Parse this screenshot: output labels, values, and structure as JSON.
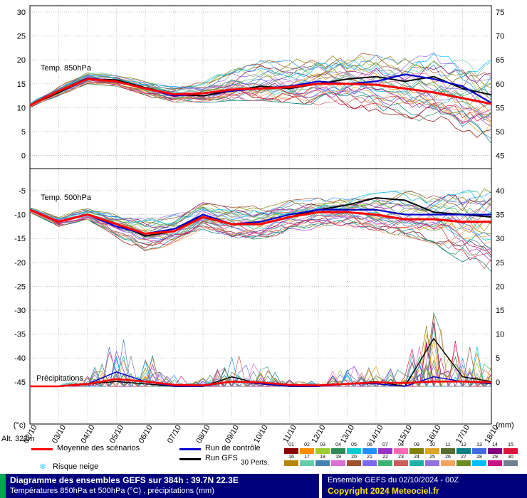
{
  "chart_data": {
    "type": "line",
    "title": "Diagramme des ensembles GEFS sur 384h : 39.7N 22.3E",
    "subtitle": "Températures 850hPa et 500hPa (°C) , précipitations (mm)",
    "run_info": "Ensemble GEFS du 02/10/2024 - 00Z",
    "copyright": "Copyright 2024 Meteociel.fr",
    "altitude_label": "Alt. 322m",
    "left_axis": {
      "unit": "(°c)",
      "ticks": [
        30,
        25,
        20,
        15,
        10,
        5,
        0,
        -5,
        -10,
        -15,
        -20,
        -25,
        -30,
        -35,
        -40,
        -45
      ]
    },
    "right_axis": {
      "unit": "(mm)",
      "ticks": [
        75,
        70,
        65,
        60,
        55,
        50,
        45,
        40,
        35,
        30,
        25,
        20,
        15,
        10,
        5,
        0
      ]
    },
    "x_labels": [
      "02/10",
      "03/10",
      "04/10",
      "05/10",
      "06/10",
      "07/10",
      "08/10",
      "09/10",
      "10/10",
      "11/10",
      "12/10",
      "13/10",
      "14/10",
      "15/10",
      "16/10",
      "17/10",
      "18/10"
    ],
    "panels": [
      {
        "id": "t850",
        "label": "Temp. 850hPa",
        "mean": [
          10.5,
          13.5,
          16,
          15.5,
          14,
          12.8,
          13,
          13.8,
          14,
          14.3,
          15,
          15,
          14.8,
          14,
          13.2,
          12,
          10.8
        ],
        "control": [
          10.5,
          13.5,
          16.2,
          15.5,
          14,
          12.5,
          13,
          13.5,
          14,
          14.5,
          15.5,
          15,
          15.5,
          17,
          16,
          14.5,
          11
        ],
        "gfs": [
          10.5,
          13.2,
          16,
          15.8,
          14.2,
          12.8,
          12.5,
          13.5,
          14.5,
          14,
          15,
          16,
          16.5,
          15.5,
          16.5,
          14,
          12.7
        ],
        "min": [
          10,
          12.5,
          15,
          14.5,
          12.5,
          11,
          11,
          11.5,
          11.5,
          11,
          10.5,
          10,
          9,
          8,
          6.5,
          5,
          2.5
        ],
        "max": [
          11,
          14.5,
          17.5,
          17,
          15.5,
          14.5,
          15.5,
          19,
          21,
          20,
          21,
          21.5,
          22,
          21,
          21.5,
          20,
          20
        ]
      },
      {
        "id": "t500",
        "label": "Temp. 500hPa",
        "mean": [
          -9,
          -11.5,
          -10,
          -12,
          -14,
          -13.5,
          -10.5,
          -12,
          -12,
          -10.5,
          -9.5,
          -9.5,
          -10,
          -11,
          -11,
          -11.5,
          -11.5
        ],
        "control": [
          -9,
          -11.5,
          -10,
          -12.5,
          -14,
          -13,
          -10,
          -12,
          -11.5,
          -10,
          -9,
          -9,
          -9,
          -10,
          -10,
          -10,
          -10
        ],
        "gfs": [
          -9,
          -11.5,
          -10,
          -12,
          -14.5,
          -13.5,
          -10,
          -12,
          -12,
          -10.5,
          -9,
          -8,
          -6.5,
          -7,
          -9.5,
          -10,
          -10.5
        ],
        "min": [
          -9.5,
          -12.5,
          -11,
          -15,
          -18,
          -16,
          -13,
          -15.5,
          -15,
          -14,
          -13,
          -13,
          -13.5,
          -14.5,
          -16,
          -20,
          -22
        ],
        "max": [
          -8.5,
          -10.5,
          -8.5,
          -10,
          -11,
          -10,
          -7.5,
          -8.5,
          -8,
          -7,
          -6.5,
          -6,
          -5.5,
          -5,
          -5.5,
          -4.5,
          -4
        ]
      },
      {
        "id": "precip",
        "label": "Précipitations",
        "mean": [
          0,
          0,
          0.5,
          1.5,
          1,
          0.3,
          0.2,
          1,
          0.8,
          0.3,
          0.2,
          0.5,
          0.8,
          0.7,
          1,
          1,
          0.8
        ],
        "control": [
          0,
          0,
          0.5,
          3,
          1,
          0,
          0,
          1,
          0.5,
          0,
          0,
          0.5,
          0.5,
          0,
          2,
          1,
          0.5
        ],
        "gfs": [
          0,
          0,
          0.5,
          1,
          0.5,
          0,
          0,
          2,
          0.5,
          0,
          0,
          0.5,
          1,
          0,
          10,
          2,
          1
        ],
        "max": [
          0.5,
          0.5,
          3,
          12,
          10,
          3,
          2,
          9,
          6,
          2,
          1,
          8,
          6,
          5,
          22,
          13,
          6
        ]
      }
    ],
    "legend": {
      "mean": {
        "label": "Moyenne des scénarios",
        "color": "#ff0000"
      },
      "control": {
        "label": "Run de contrôle",
        "color": "#0000cc"
      },
      "gfs": {
        "label": "Run GFS",
        "color": "#000000"
      },
      "perts_label": "30 Perts.",
      "snow_label": "Risque neige",
      "pert_numbers": [
        "01",
        "02",
        "03",
        "04",
        "05",
        "06",
        "07",
        "08",
        "09",
        "10",
        "11",
        "12",
        "13",
        "14",
        "15",
        "16",
        "17",
        "18",
        "19",
        "20",
        "21",
        "22",
        "23",
        "24",
        "25",
        "26",
        "27",
        "28",
        "29",
        "30"
      ],
      "pert_colors": [
        "#8b0000",
        "#ff8c00",
        "#9acd32",
        "#2e8b57",
        "#00ced1",
        "#1e90ff",
        "#9932cc",
        "#ff69b4",
        "#808000",
        "#daa520",
        "#556b2f",
        "#008080",
        "#4169e1",
        "#800080",
        "#dc143c",
        "#b8860b",
        "#66cdaa",
        "#4682b4",
        "#da70d6",
        "#a0522d",
        "#7b68ee",
        "#3cb371",
        "#cd5c5c",
        "#20b2aa",
        "#9370db",
        "#f4a460",
        "#6b8e23",
        "#00bfff",
        "#c71585",
        "#708090"
      ]
    }
  }
}
